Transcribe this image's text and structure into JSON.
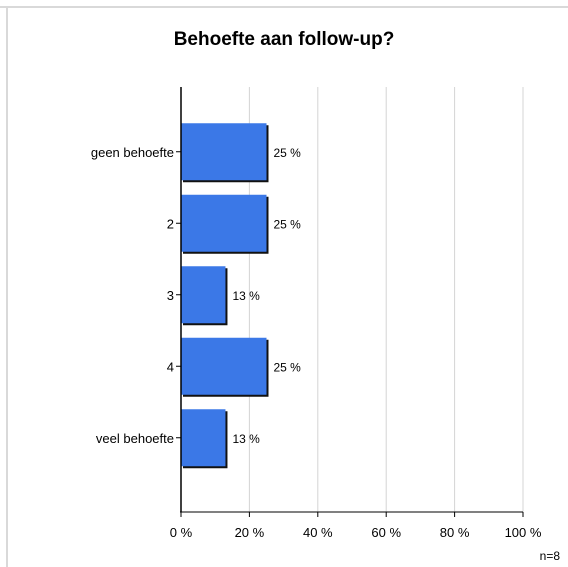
{
  "chart_data": {
    "type": "bar",
    "orientation": "horizontal",
    "title": "Behoefte aan follow-up?",
    "categories": [
      "geen behoefte",
      "2",
      "3",
      "4",
      "veel behoefte"
    ],
    "values": [
      25,
      25,
      13,
      25,
      13
    ],
    "value_labels": [
      "25 %",
      "25 %",
      "13 %",
      "25 %",
      "13 %"
    ],
    "x_ticks": [
      0,
      20,
      40,
      60,
      80,
      100
    ],
    "x_tick_labels": [
      "0 %",
      "20 %",
      "40 %",
      "60 %",
      "80 %",
      "100 %"
    ],
    "xlim": [
      0,
      100
    ],
    "grid": true,
    "bar_color": "#3b78e7",
    "n_label": "n=8"
  }
}
